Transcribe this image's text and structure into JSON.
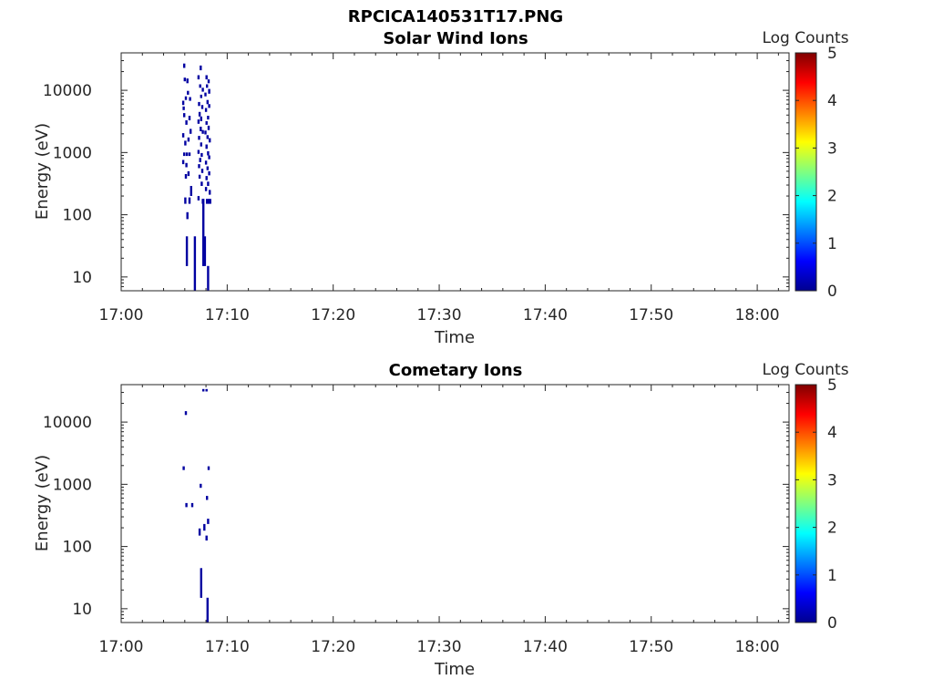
{
  "figure": {
    "title": "RPCICA140531T17.PNG"
  },
  "colormap": {
    "name": "jet",
    "stops": [
      "#00008f",
      "#0000ff",
      "#00ffff",
      "#ffff00",
      "#ff0000",
      "#800000"
    ]
  },
  "chart_data": [
    {
      "type": "heatmap",
      "title": "Solar Wind Ions",
      "xlabel": "Time",
      "ylabel": "Energy (eV)",
      "x_tick_labels": [
        "17:00",
        "17:10",
        "17:20",
        "17:30",
        "17:40",
        "17:50",
        "18:00"
      ],
      "xlim": [
        "17:00",
        "18:03"
      ],
      "y_scale": "log",
      "y_tick_labels": [
        "10",
        "100",
        "1000",
        "10000"
      ],
      "ylim": [
        6,
        40000
      ],
      "colorbar": {
        "label": "Log Counts",
        "ticks": [
          "0",
          "1",
          "2",
          "3",
          "4",
          "5"
        ],
        "range": [
          0,
          5
        ]
      },
      "cells_note": "each cell: [time_minutes_after_17:00, energy_low_eV, energy_high_eV, log_counts]",
      "cells": [
        [
          5.95,
          23000,
          27000,
          0.1
        ],
        [
          6.0,
          14000,
          16000,
          0.1
        ],
        [
          6.25,
          13000,
          15500,
          0.1
        ],
        [
          5.85,
          5800,
          6800,
          0.1
        ],
        [
          5.9,
          4800,
          5500,
          0.1
        ],
        [
          6.1,
          7000,
          8000,
          0.1
        ],
        [
          6.3,
          8500,
          9800,
          0.1
        ],
        [
          6.5,
          6800,
          7800,
          0.1
        ],
        [
          5.95,
          3700,
          4300,
          0.1
        ],
        [
          6.15,
          2800,
          3300,
          0.1
        ],
        [
          6.45,
          3300,
          3900,
          0.1
        ],
        [
          5.85,
          1750,
          2050,
          0.1
        ],
        [
          6.05,
          1300,
          1550,
          0.1
        ],
        [
          6.35,
          1500,
          1750,
          0.1
        ],
        [
          6.55,
          2000,
          2400,
          0.1
        ],
        [
          5.95,
          880,
          1000,
          0.1
        ],
        [
          6.2,
          880,
          1000,
          0.1
        ],
        [
          6.45,
          880,
          1000,
          0.1
        ],
        [
          5.85,
          650,
          760,
          0.1
        ],
        [
          6.15,
          580,
          680,
          0.1
        ],
        [
          6.35,
          420,
          500,
          0.1
        ],
        [
          6.1,
          380,
          450,
          0.1
        ],
        [
          6.6,
          200,
          290,
          0.1
        ],
        [
          6.05,
          150,
          190,
          0.1
        ],
        [
          6.45,
          150,
          190,
          0.1
        ],
        [
          6.25,
          85,
          110,
          0.1
        ],
        [
          6.2,
          15,
          45,
          0.1
        ],
        [
          6.95,
          6,
          45,
          0.1
        ],
        [
          7.5,
          21000,
          25000,
          0.1
        ],
        [
          7.3,
          15000,
          17500,
          0.1
        ],
        [
          7.7,
          9500,
          11000,
          0.1
        ],
        [
          7.45,
          11000,
          12500,
          0.1
        ],
        [
          7.55,
          7500,
          8500,
          0.1
        ],
        [
          7.35,
          5600,
          6500,
          0.1
        ],
        [
          7.65,
          5000,
          5800,
          0.1
        ],
        [
          7.4,
          3800,
          4500,
          0.1
        ],
        [
          7.55,
          3200,
          3800,
          0.1
        ],
        [
          7.3,
          2900,
          3400,
          0.1
        ],
        [
          7.5,
          2200,
          2600,
          0.1
        ],
        [
          7.7,
          2000,
          2300,
          0.1
        ],
        [
          7.35,
          1600,
          1850,
          0.1
        ],
        [
          7.55,
          1250,
          1450,
          0.1
        ],
        [
          7.3,
          950,
          1100,
          0.1
        ],
        [
          7.6,
          850,
          980,
          0.1
        ],
        [
          7.45,
          700,
          820,
          0.1
        ],
        [
          7.35,
          560,
          650,
          0.1
        ],
        [
          7.65,
          470,
          550,
          0.1
        ],
        [
          7.4,
          380,
          440,
          0.1
        ],
        [
          7.6,
          290,
          340,
          0.1
        ],
        [
          7.3,
          170,
          200,
          0.1
        ],
        [
          7.7,
          150,
          180,
          0.1
        ],
        [
          7.75,
          15,
          180,
          0.1
        ],
        [
          7.9,
          15,
          45,
          0.1
        ],
        [
          8.05,
          15000,
          17500,
          0.1
        ],
        [
          8.25,
          13000,
          15000,
          0.1
        ],
        [
          8.1,
          11000,
          12500,
          0.1
        ],
        [
          8.3,
          8800,
          10500,
          0.1
        ],
        [
          7.95,
          8000,
          9200,
          0.1
        ],
        [
          8.15,
          6000,
          7000,
          0.1
        ],
        [
          8.3,
          5200,
          6000,
          0.1
        ],
        [
          8.0,
          4500,
          5200,
          0.1
        ],
        [
          8.2,
          3400,
          3900,
          0.1
        ],
        [
          8.05,
          2800,
          3200,
          0.1
        ],
        [
          8.25,
          2300,
          2700,
          0.1
        ],
        [
          7.95,
          1950,
          2250,
          0.1
        ],
        [
          8.15,
          1650,
          1900,
          0.1
        ],
        [
          8.35,
          1450,
          1700,
          0.1
        ],
        [
          8.05,
          1150,
          1350,
          0.1
        ],
        [
          8.2,
          900,
          1050,
          0.1
        ],
        [
          8.3,
          780,
          900,
          0.1
        ],
        [
          8.0,
          640,
          740,
          0.1
        ],
        [
          8.15,
          520,
          600,
          0.1
        ],
        [
          8.3,
          430,
          500,
          0.1
        ],
        [
          8.05,
          360,
          420,
          0.1
        ],
        [
          8.2,
          290,
          340,
          0.1
        ],
        [
          8.0,
          240,
          280,
          0.1
        ],
        [
          8.35,
          210,
          250,
          0.1
        ],
        [
          8.1,
          150,
          180,
          0.1
        ],
        [
          8.25,
          150,
          180,
          0.1
        ],
        [
          8.4,
          150,
          180,
          0.1
        ],
        [
          8.2,
          6,
          15,
          0.1
        ]
      ]
    },
    {
      "type": "heatmap",
      "title": "Cometary Ions",
      "xlabel": "Time",
      "ylabel": "Energy (eV)",
      "x_tick_labels": [
        "17:00",
        "17:10",
        "17:20",
        "17:30",
        "17:40",
        "17:50",
        "18:00"
      ],
      "xlim": [
        "17:00",
        "18:03"
      ],
      "y_scale": "log",
      "y_tick_labels": [
        "10",
        "100",
        "1000",
        "10000"
      ],
      "ylim": [
        6,
        40000
      ],
      "colorbar": {
        "label": "Log Counts",
        "ticks": [
          "0",
          "1",
          "2",
          "3",
          "4",
          "5"
        ],
        "range": [
          0,
          5
        ]
      },
      "cells_note": "each cell: [time_minutes_after_17:00, energy_low_eV, energy_high_eV, log_counts]",
      "cells": [
        [
          7.75,
          31000,
          34000,
          0.1
        ],
        [
          8.05,
          31000,
          34000,
          0.1
        ],
        [
          6.1,
          13000,
          15000,
          0.1
        ],
        [
          5.9,
          1700,
          1950,
          0.1
        ],
        [
          8.25,
          1700,
          1950,
          0.1
        ],
        [
          7.5,
          880,
          1020,
          0.1
        ],
        [
          8.1,
          560,
          650,
          0.1
        ],
        [
          6.15,
          430,
          500,
          0.1
        ],
        [
          6.7,
          430,
          500,
          0.1
        ],
        [
          8.2,
          230,
          280,
          0.1
        ],
        [
          7.85,
          180,
          230,
          0.1
        ],
        [
          7.4,
          150,
          195,
          0.1
        ],
        [
          8.05,
          125,
          150,
          0.1
        ],
        [
          7.55,
          15,
          45,
          0.1
        ],
        [
          8.15,
          6,
          15,
          0.1
        ]
      ]
    }
  ]
}
